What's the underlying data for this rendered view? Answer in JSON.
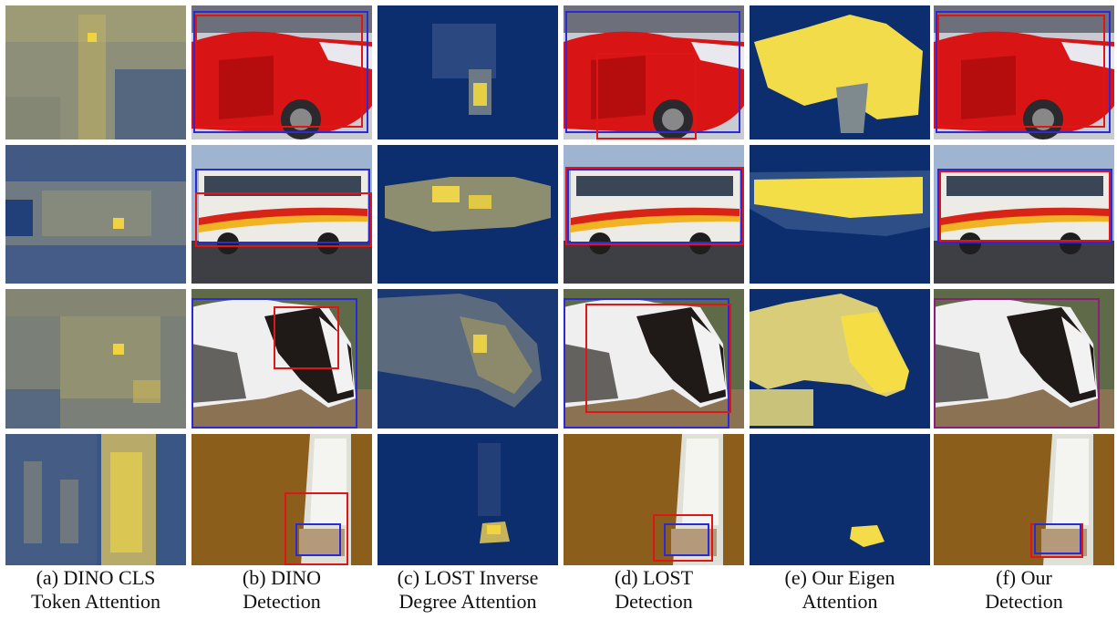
{
  "figure": {
    "captions": [
      {
        "line1": "(a) DINO CLS",
        "line2": "Token Attention"
      },
      {
        "line1": "(b) DINO",
        "line2": "Detection"
      },
      {
        "line1": "(c) LOST Inverse",
        "line2": "Degree Attention"
      },
      {
        "line1": "(d) LOST",
        "line2": "Detection"
      },
      {
        "line1": "(e) Our Eigen",
        "line2": "Attention"
      },
      {
        "line1": "(f) Our",
        "line2": "Detection"
      }
    ],
    "rows": [
      "car",
      "bus",
      "horse",
      "cat-window"
    ],
    "box_colors": {
      "ground_truth": "#2b2bd6",
      "prediction": "#e01515",
      "heatmap_low": "#0b2a66",
      "heatmap_high": "#f5e04a"
    }
  }
}
